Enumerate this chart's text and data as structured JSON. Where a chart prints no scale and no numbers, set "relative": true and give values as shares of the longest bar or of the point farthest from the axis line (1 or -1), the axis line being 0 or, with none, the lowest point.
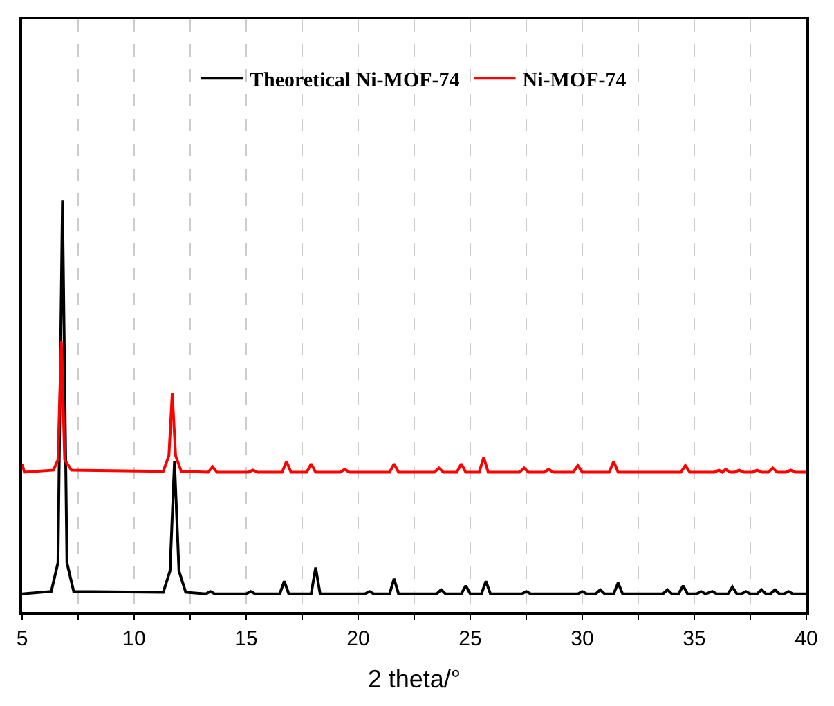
{
  "chart_data": {
    "type": "line",
    "relative": true,
    "xlabel": "2 theta/°",
    "xlim": [
      5,
      40
    ],
    "xticks": [
      5,
      {
        "value": 7.5,
        "label": null
      },
      10,
      {
        "value": 12.5,
        "label": null
      },
      15,
      {
        "value": 17.5,
        "label": null
      },
      20,
      {
        "value": 22.5,
        "label": null
      },
      25,
      {
        "value": 27.5,
        "label": null
      },
      30,
      {
        "value": 32.5,
        "label": null
      },
      35,
      {
        "value": 37.5,
        "label": null
      },
      40
    ],
    "grid": "x",
    "legend": "top",
    "marker": "none",
    "line_style": "solid",
    "tick_labels": "x",
    "series": [
      {
        "name": "Theoretical Ni-MOF-74",
        "color": "#000000",
        "x": [
          5,
          6.3,
          6.6,
          6.8,
          7.0,
          7.3,
          11.3,
          11.6,
          11.8,
          12.0,
          12.3,
          13.2,
          13.4,
          13.6,
          15.0,
          15.2,
          15.4,
          16.5,
          16.7,
          16.9,
          17.9,
          18.1,
          18.3,
          20.3,
          20.5,
          20.7,
          21.4,
          21.6,
          21.8,
          23.5,
          23.7,
          23.9,
          24.6,
          24.8,
          25.0,
          25.5,
          25.7,
          25.9,
          27.3,
          27.5,
          27.7,
          29.8,
          30.0,
          30.2,
          30.6,
          30.8,
          31.0,
          31.4,
          31.6,
          31.8,
          33.6,
          33.8,
          34.0,
          34.3,
          34.5,
          34.7,
          35.1,
          35.3,
          35.5,
          35.8,
          36.0,
          36.5,
          36.7,
          36.9,
          37.1,
          37.3,
          37.5,
          37.8,
          38.0,
          38.2,
          38.4,
          38.6,
          38.8,
          39.0,
          39.2,
          39.4,
          40
        ],
        "values": [
          0.044,
          0.05,
          0.12,
          1.0,
          0.12,
          0.05,
          0.048,
          0.1,
          0.366,
          0.1,
          0.048,
          0.044,
          0.05,
          0.044,
          0.044,
          0.05,
          0.044,
          0.044,
          0.075,
          0.044,
          0.044,
          0.108,
          0.044,
          0.044,
          0.05,
          0.044,
          0.044,
          0.081,
          0.044,
          0.044,
          0.054,
          0.044,
          0.044,
          0.064,
          0.044,
          0.044,
          0.075,
          0.044,
          0.044,
          0.05,
          0.044,
          0.044,
          0.05,
          0.044,
          0.044,
          0.054,
          0.044,
          0.044,
          0.071,
          0.044,
          0.044,
          0.054,
          0.044,
          0.044,
          0.064,
          0.044,
          0.044,
          0.05,
          0.044,
          0.05,
          0.044,
          0.044,
          0.061,
          0.044,
          0.044,
          0.05,
          0.044,
          0.044,
          0.054,
          0.044,
          0.044,
          0.054,
          0.044,
          0.044,
          0.05,
          0.044,
          0.044
        ]
      },
      {
        "name": "Ni-MOF-74",
        "color": "#ff0000",
        "x": [
          5,
          5.1,
          6.4,
          6.6,
          6.75,
          6.9,
          7.2,
          11.3,
          11.55,
          11.7,
          11.85,
          12.1,
          13.3,
          13.5,
          13.7,
          15.1,
          15.3,
          15.5,
          16.6,
          16.8,
          17.0,
          17.7,
          17.9,
          18.1,
          19.2,
          19.4,
          19.6,
          21.4,
          21.6,
          21.8,
          23.4,
          23.6,
          23.8,
          24.4,
          24.6,
          24.8,
          25.4,
          25.6,
          25.8,
          27.2,
          27.4,
          27.6,
          28.3,
          28.5,
          28.7,
          29.6,
          29.8,
          30.0,
          31.2,
          31.4,
          31.6,
          34.4,
          34.6,
          34.8,
          35.9,
          36.1,
          36.25,
          36.4,
          36.6,
          36.8,
          37.0,
          37.2,
          37.6,
          37.8,
          38.0,
          38.3,
          38.5,
          38.7,
          39.1,
          39.3,
          39.5,
          40
        ],
        "values": [
          0.36,
          0.34,
          0.345,
          0.37,
          0.658,
          0.37,
          0.345,
          0.342,
          0.38,
          0.532,
          0.38,
          0.342,
          0.34,
          0.353,
          0.34,
          0.34,
          0.345,
          0.34,
          0.34,
          0.366,
          0.34,
          0.34,
          0.36,
          0.34,
          0.34,
          0.347,
          0.34,
          0.34,
          0.36,
          0.34,
          0.34,
          0.35,
          0.34,
          0.34,
          0.36,
          0.34,
          0.34,
          0.376,
          0.34,
          0.34,
          0.35,
          0.34,
          0.34,
          0.347,
          0.34,
          0.34,
          0.356,
          0.34,
          0.34,
          0.366,
          0.34,
          0.34,
          0.356,
          0.34,
          0.34,
          0.345,
          0.34,
          0.347,
          0.34,
          0.34,
          0.345,
          0.34,
          0.34,
          0.345,
          0.34,
          0.34,
          0.35,
          0.34,
          0.34,
          0.345,
          0.34,
          0.34
        ]
      }
    ]
  }
}
